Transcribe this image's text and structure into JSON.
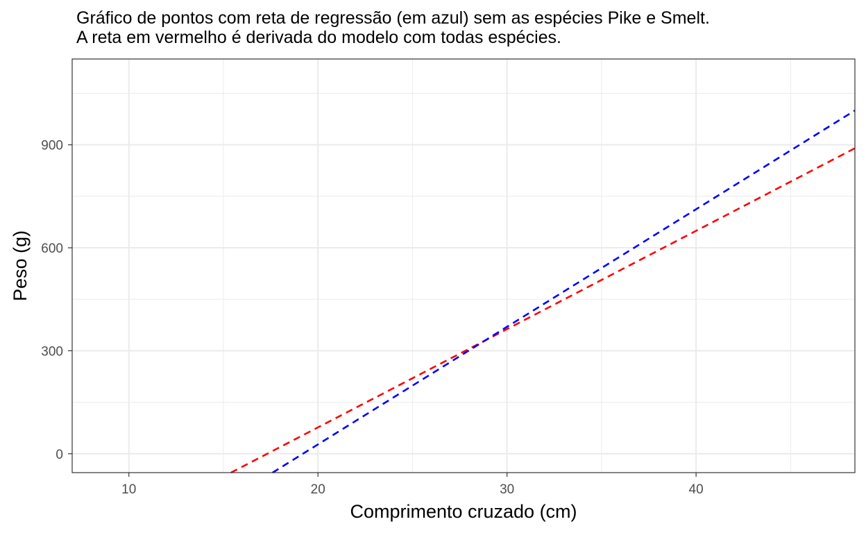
{
  "chart_data": {
    "type": "line",
    "title_lines": [
      "Gráfico de pontos com reta de regressão (em azul) sem as espécies Pike e Smelt.",
      "A reta em vermelho é derivada do modelo com todas espécies."
    ],
    "xlabel": "Comprimento cruzado (cm)",
    "ylabel": "Peso (g)",
    "xlim": [
      7,
      48.4
    ],
    "ylim": [
      -55,
      1150
    ],
    "xticks": [
      10,
      20,
      30,
      40
    ],
    "yticks": [
      0,
      300,
      600,
      900
    ],
    "grid": true,
    "series": [
      {
        "color": "#ff0000",
        "dash": "dashed",
        "x": [
          15.4,
          48.4
        ],
        "y": [
          -55,
          890
        ]
      },
      {
        "color": "#0000ff",
        "dash": "dashed",
        "x": [
          17.6,
          48.4
        ],
        "y": [
          -55,
          1000
        ]
      }
    ]
  }
}
